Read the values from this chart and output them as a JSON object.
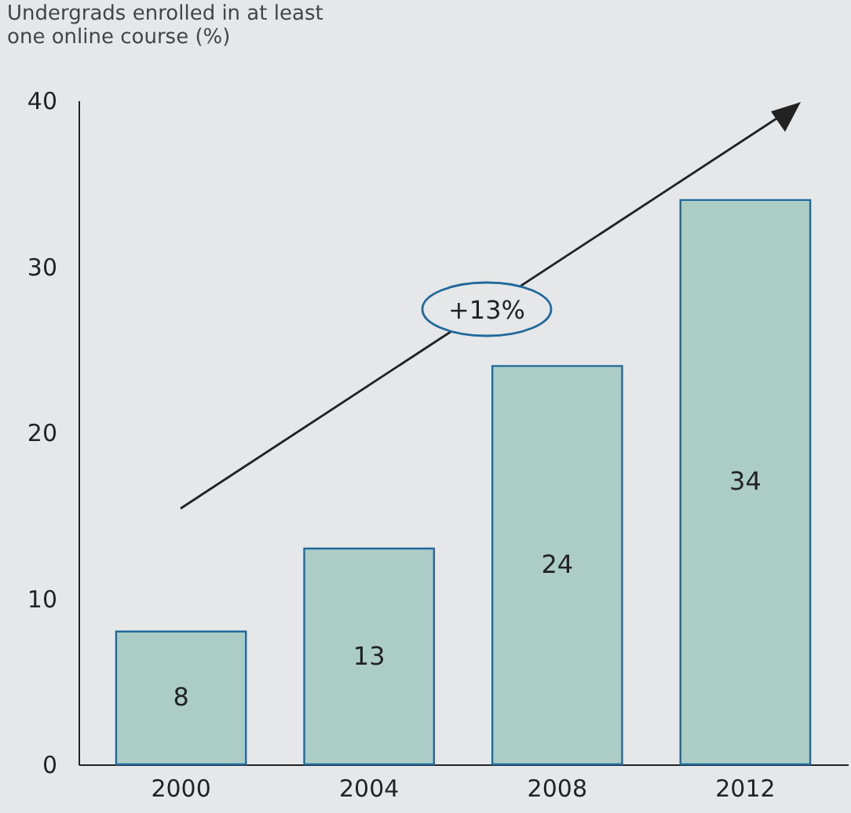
{
  "chart_data": {
    "type": "bar",
    "ylabel": "Undergrads enrolled in at least one online course (%)",
    "categories": [
      "2000",
      "2004",
      "2008",
      "2012"
    ],
    "values": [
      8,
      13,
      24,
      34
    ],
    "color": "#accdc6",
    "ylim": [
      0,
      40
    ],
    "yticks": [
      0,
      10,
      20,
      30,
      40
    ],
    "grid": false,
    "data_labels": true,
    "annotations": [
      "+13%"
    ]
  }
}
